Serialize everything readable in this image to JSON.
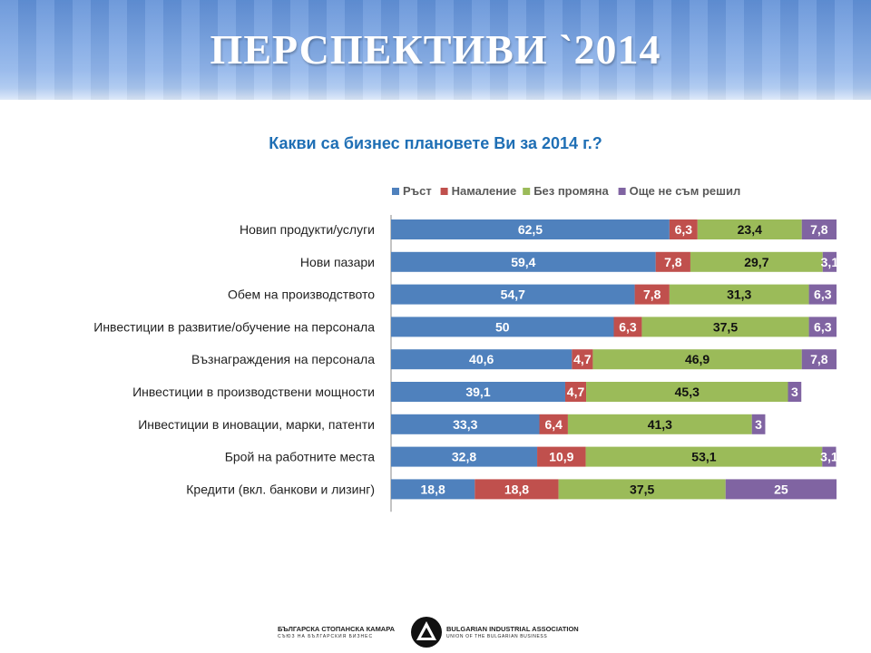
{
  "header": {
    "title": "ПЕРСПЕКТИВИ `2014"
  },
  "chart_data": {
    "type": "bar",
    "orientation": "horizontal",
    "stacked": true,
    "title": "Какви са бизнес плановете Ви за 2014 г.?",
    "legend_position": "top",
    "categories": [
      "Новип продукти/услуги",
      "Нови пазари",
      "Обем на производството",
      "Инвестиции в развитие/обучение на персонала",
      "Възнаграждения на персонала",
      "Инвестиции в производствени мощности",
      "Инвестиции в иновации, марки, патенти",
      "Брой на работните места",
      "Кредити (вкл. банкови и лизинг)"
    ],
    "series": [
      {
        "name": "Ръст",
        "color": "#4f81bd",
        "values": [
          62.5,
          59.4,
          54.7,
          50,
          40.6,
          39.1,
          33.3,
          32.8,
          18.8
        ]
      },
      {
        "name": "Намаление",
        "color": "#c0504d",
        "values": [
          6.3,
          7.8,
          7.8,
          6.3,
          4.7,
          4.7,
          6.4,
          10.9,
          18.8
        ]
      },
      {
        "name": "Без промяна",
        "color": "#9bbb59",
        "values": [
          23.4,
          29.7,
          31.3,
          37.5,
          46.9,
          45.3,
          41.3,
          53.1,
          37.5
        ]
      },
      {
        "name": "Още не съм решил",
        "color": "#8064a2",
        "values": [
          7.8,
          3.1,
          6.3,
          6.3,
          7.8,
          3,
          3,
          3.1,
          25
        ]
      }
    ],
    "xlim": [
      0,
      100
    ],
    "grid": false
  },
  "footer": {
    "logo_bg_line1": "БЪЛГАРСКА СТОПАНСКА КАМАРА",
    "logo_bg_line2": "СЪЮЗ НА БЪЛГАРСКИЯ БИЗНЕС",
    "logo_en_line1": "BULGARIAN INDUSTRIAL ASSOCIATION",
    "logo_en_line2": "UNION OF THE BULGARIAN BUSINESS"
  }
}
